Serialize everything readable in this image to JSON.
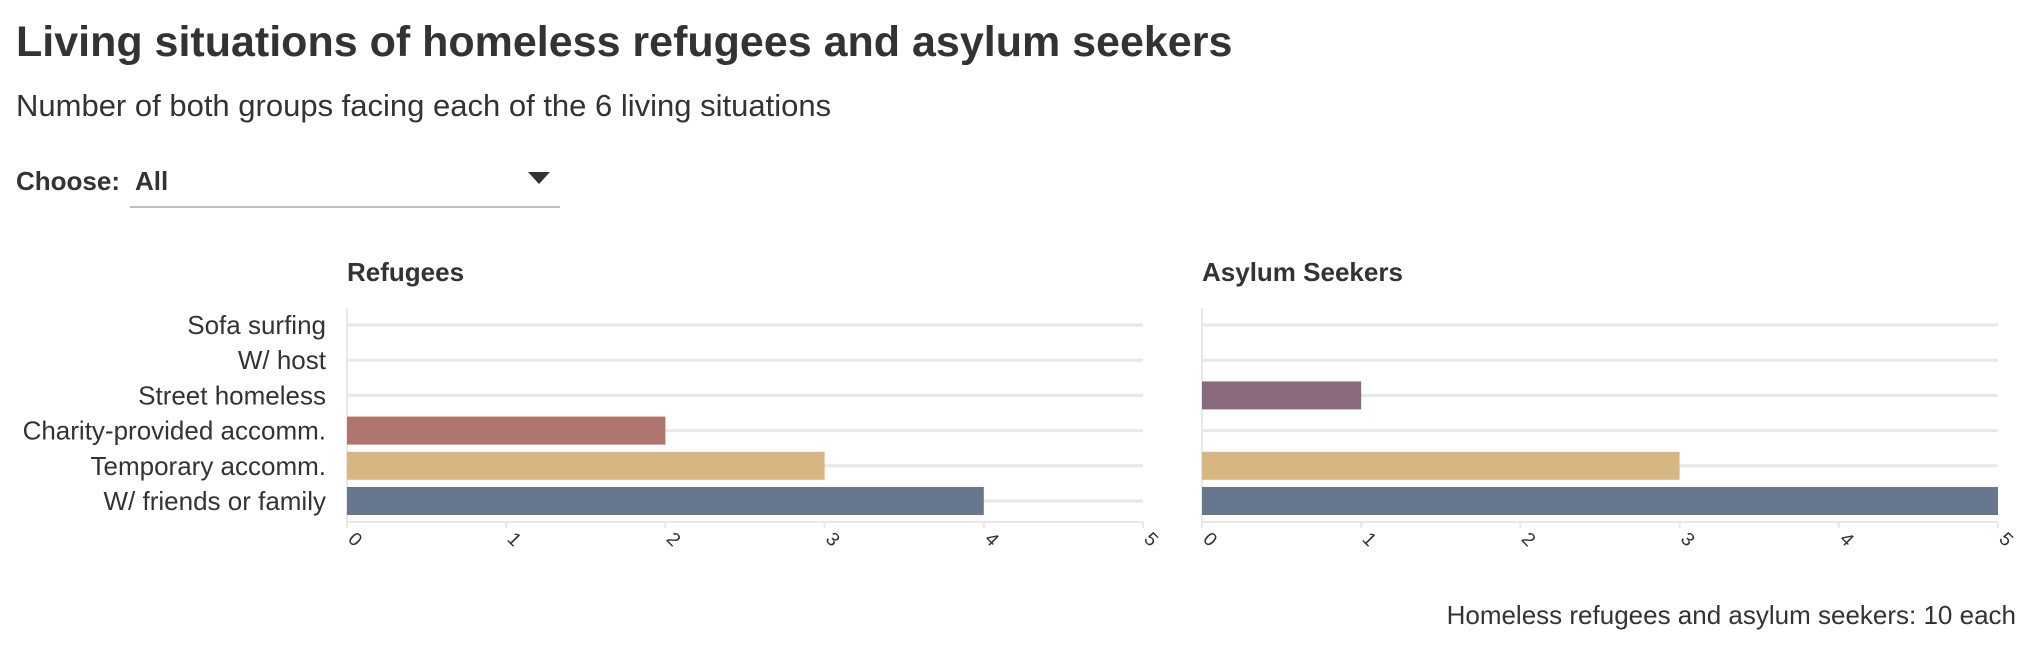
{
  "header": {
    "title": "Living situations of homeless refugees and asylum seekers",
    "subtitle": "Number of both groups facing each of the 6 living situations"
  },
  "filter": {
    "label": "Choose:",
    "selected": "All"
  },
  "footnote": "Homeless refugees and asylum seekers: 10 each",
  "colors": {
    "charity": "#ad756b",
    "temporary": "#d8b682",
    "friends_family": "#66778e",
    "street": "#8a6b7e",
    "sofa": "#999999",
    "host": "#999999",
    "grid": "#e8e8e8",
    "text": "#333333"
  },
  "chart_data": [
    {
      "type": "bar",
      "orientation": "horizontal",
      "title": "Refugees",
      "categories": [
        "Sofa surfing",
        "W/ host",
        "Street homeless",
        "Charity-provided accomm.",
        "Temporary accomm.",
        "W/ friends or family"
      ],
      "values": [
        0,
        0,
        0,
        2,
        3,
        4
      ],
      "bar_colors": [
        "#999999",
        "#999999",
        "#8a6b7e",
        "#ad756b",
        "#d8b682",
        "#66778e"
      ],
      "xlim": [
        0,
        5
      ],
      "xticks": [
        "0",
        "1",
        "2",
        "3",
        "4",
        "5"
      ],
      "grid": true
    },
    {
      "type": "bar",
      "orientation": "horizontal",
      "title": "Asylum Seekers",
      "categories": [
        "Sofa surfing",
        "W/ host",
        "Street homeless",
        "Charity-provided accomm.",
        "Temporary accomm.",
        "W/ friends or family"
      ],
      "values": [
        0,
        0,
        1,
        0,
        3,
        5
      ],
      "bar_colors": [
        "#999999",
        "#999999",
        "#8a6b7e",
        "#ad756b",
        "#d8b682",
        "#66778e"
      ],
      "xlim": [
        0,
        5
      ],
      "xticks": [
        "0",
        "1",
        "2",
        "3",
        "4",
        "5"
      ],
      "grid": true
    }
  ]
}
